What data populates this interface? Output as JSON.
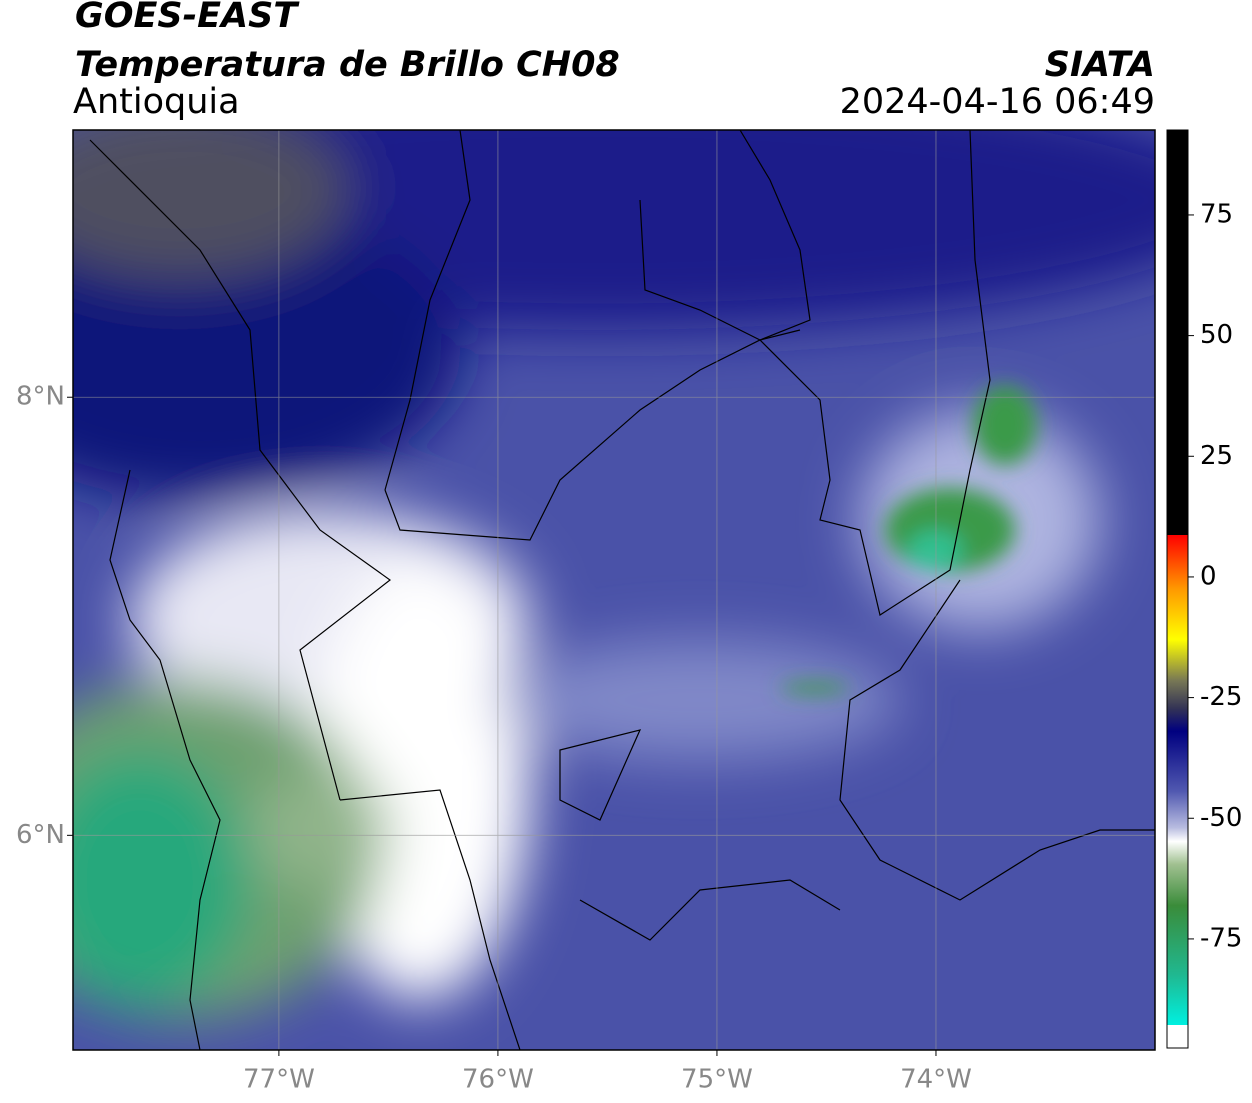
{
  "header": {
    "title": "GOES-EAST",
    "subtitle": "Temperatura de Brillo CH08",
    "region": "Antioquia",
    "source": "SIATA",
    "datetime": "2024-04-16 06:49"
  },
  "map": {
    "xlim": [
      -77.94,
      -73.0
    ],
    "ylim": [
      5.02,
      9.22
    ],
    "xticks": [
      {
        "value": -77,
        "label": "77°W"
      },
      {
        "value": -76,
        "label": "76°W"
      },
      {
        "value": -75,
        "label": "75°W"
      },
      {
        "value": -74,
        "label": "74°W"
      }
    ],
    "yticks": [
      {
        "value": 8,
        "label": "8°N"
      },
      {
        "value": 6,
        "label": "6°N"
      }
    ],
    "grid": true
  },
  "colorbar": {
    "lim": [
      -97.6,
      92.6
    ],
    "ticks": [
      75,
      50,
      25,
      0,
      -25,
      -50,
      -75
    ]
  }
}
